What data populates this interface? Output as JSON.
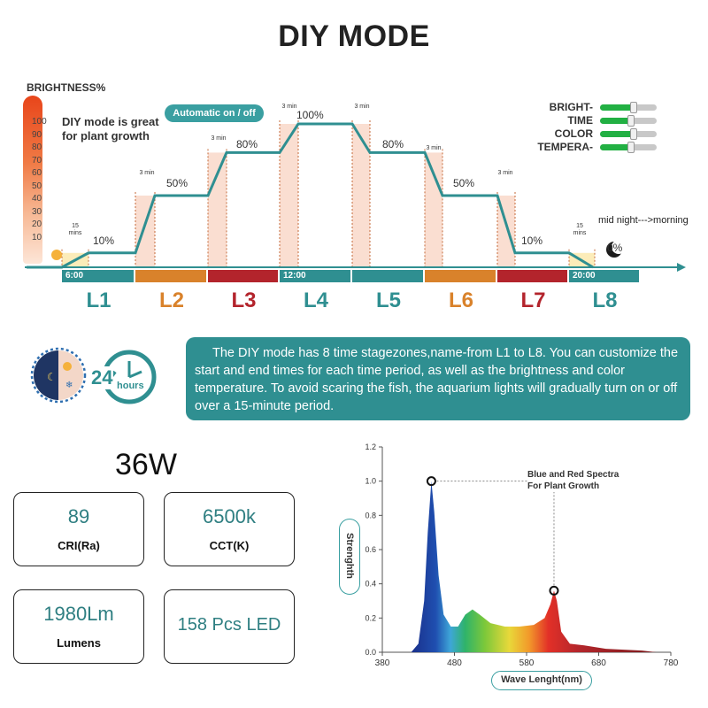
{
  "title": "DIY MODE",
  "brightness_label": "BRIGHTNESS%",
  "brightness_scale": [
    "100",
    "90",
    "80",
    "70",
    "60",
    "50",
    "40",
    "30",
    "20",
    "10"
  ],
  "diy_note": "DIY mode is great for plant growth",
  "auto_label": "Automatic on / off",
  "sliders": [
    {
      "label": "BRIGHT-",
      "level": 0.6
    },
    {
      "label": "TIME",
      "level": 0.55
    },
    {
      "label": "COLOR",
      "level": 0.6
    },
    {
      "label": "TEMPERA-",
      "level": 0.55
    }
  ],
  "midnight_note": "mid night--->morning",
  "levels": [
    "10%",
    "50%",
    "80%",
    "100%",
    "80%",
    "50%",
    "10%",
    "0%"
  ],
  "mins_labels": [
    "15 mins",
    "3 min",
    "3 min",
    "3 min",
    "3 min",
    "3 min",
    "3 min",
    "15 mins"
  ],
  "stages": [
    {
      "name": "L1",
      "time": "6:00",
      "color": "#2f8f91"
    },
    {
      "name": "L2",
      "time": "",
      "color": "#d9822b"
    },
    {
      "name": "L3",
      "time": "",
      "color": "#b3242c"
    },
    {
      "name": "L4",
      "time": "12:00",
      "color": "#2f8f91"
    },
    {
      "name": "L5",
      "time": "",
      "color": "#2f8f91"
    },
    {
      "name": "L6",
      "time": "",
      "color": "#d9822b"
    },
    {
      "name": "L7",
      "time": "",
      "color": "#b3242c"
    },
    {
      "name": "L8",
      "time": "20:00",
      "color": "#2f8f91"
    }
  ],
  "clock_label": "24",
  "clock_sub": "hours",
  "info_text": "The DIY mode has 8 time stagezones,name-from L1 to L8. You can customize the start and end times for each time period, as well as the brightness and color temperature. To avoid scaring the fish, the aquarium lights will gradually turn on or off over a 15-minute period.",
  "wattage": "36W",
  "specs": [
    {
      "value": "89",
      "label": "CRI(Ra)"
    },
    {
      "value": "6500k",
      "label": "CCT(K)"
    },
    {
      "value": "1980Lm",
      "label": "Lumens"
    },
    {
      "value": "158 Pcs LED",
      "label": ""
    }
  ],
  "spectrum": {
    "ylabel": "Strenghth",
    "xlabel": "Wave Lenght(nm)",
    "note": "Blue and Red Spectra For Plant Growth",
    "x_ticks": [
      "380",
      "480",
      "580",
      "680",
      "780"
    ],
    "y_ticks": [
      "0.0",
      "0.2",
      "0.4",
      "0.6",
      "0.8",
      "1.0",
      "1.2"
    ],
    "xlim": [
      380,
      780
    ],
    "ylim": [
      0,
      1.2
    ],
    "points": [
      [
        420,
        0
      ],
      [
        430,
        0.05
      ],
      [
        438,
        0.3
      ],
      [
        443,
        0.7
      ],
      [
        448,
        1.0
      ],
      [
        452,
        0.82
      ],
      [
        458,
        0.45
      ],
      [
        465,
        0.22
      ],
      [
        475,
        0.15
      ],
      [
        485,
        0.15
      ],
      [
        495,
        0.22
      ],
      [
        505,
        0.25
      ],
      [
        515,
        0.22
      ],
      [
        530,
        0.17
      ],
      [
        550,
        0.15
      ],
      [
        570,
        0.15
      ],
      [
        590,
        0.16
      ],
      [
        605,
        0.2
      ],
      [
        613,
        0.28
      ],
      [
        618,
        0.36
      ],
      [
        622,
        0.3
      ],
      [
        628,
        0.12
      ],
      [
        640,
        0.05
      ],
      [
        660,
        0.04
      ],
      [
        690,
        0.02
      ],
      [
        740,
        0.01
      ],
      [
        760,
        0
      ]
    ],
    "markers": [
      [
        448,
        1.0
      ],
      [
        618,
        0.36
      ]
    ]
  }
}
